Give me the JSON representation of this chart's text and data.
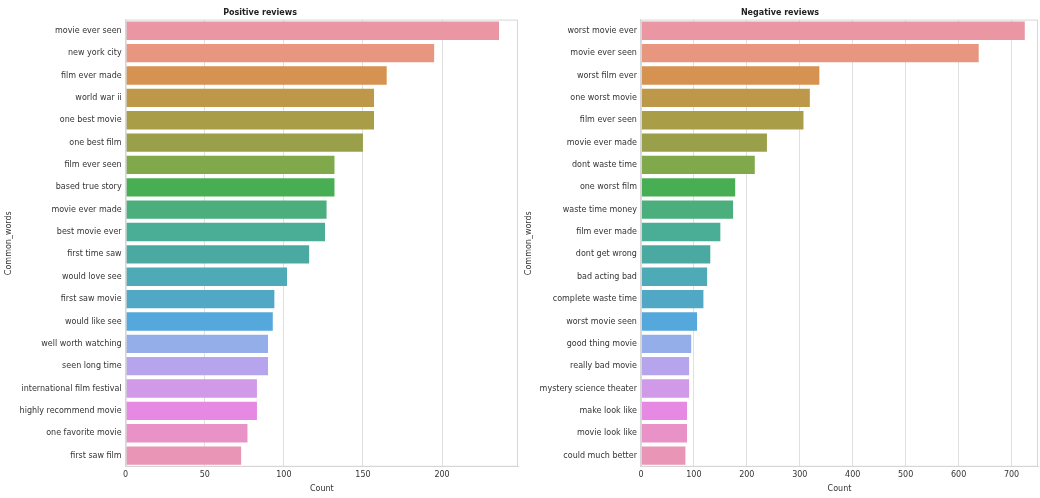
{
  "chart_data": [
    {
      "type": "bar",
      "orientation": "horizontal",
      "title": "Positive reviews",
      "xlabel": "Count",
      "ylabel": "Common_words",
      "grid": "x",
      "legend": false,
      "categories": [
        "movie ever seen",
        "new york city",
        "film ever made",
        "world war ii",
        "one best movie",
        "one best film",
        "film ever seen",
        "based true story",
        "movie ever made",
        "best movie ever",
        "first time saw",
        "would love see",
        "first saw movie",
        "would like see",
        "well worth watching",
        "seen long time",
        "international film festival",
        "highly recommend movie",
        "one favorite movie",
        "first saw film"
      ],
      "values": [
        236,
        195,
        165,
        157,
        157,
        150,
        132,
        132,
        127,
        126,
        116,
        102,
        94,
        93,
        90,
        90,
        83,
        83,
        77,
        73
      ],
      "colors": [
        "#ea96a3",
        "#e8967f",
        "#d59250",
        "#bd9848",
        "#a99d47",
        "#9aa04a",
        "#7fa94a",
        "#48ae53",
        "#4aae7d",
        "#4aad95",
        "#4aaaa2",
        "#4eaab6",
        "#50a8c4",
        "#55a8db",
        "#93aee8",
        "#b6a5ec",
        "#d19ae8",
        "#e689e3",
        "#e892c8",
        "#e995b6"
      ],
      "xlim": [
        0,
        248
      ],
      "xticks": [
        0,
        50,
        100,
        150,
        200
      ]
    },
    {
      "type": "bar",
      "orientation": "horizontal",
      "title": "Negative reviews",
      "xlabel": "Count",
      "ylabel": "Common_words",
      "grid": "x",
      "legend": false,
      "categories": [
        "worst movie ever",
        "movie ever seen",
        "worst film ever",
        "one worst movie",
        "film ever seen",
        "movie ever made",
        "dont waste time",
        "one worst film",
        "waste time money",
        "film ever made",
        "dont get wrong",
        "bad acting bad",
        "complete waste time",
        "worst movie seen",
        "good thing movie",
        "really bad movie",
        "mystery science theater",
        "make look like",
        "movie look like",
        "could much better"
      ],
      "values": [
        725,
        638,
        337,
        319,
        307,
        238,
        215,
        178,
        174,
        150,
        131,
        125,
        118,
        106,
        95,
        91,
        91,
        87,
        87,
        84
      ],
      "colors": [
        "#ea96a3",
        "#e8967f",
        "#d59250",
        "#bd9848",
        "#a99d47",
        "#9aa04a",
        "#7fa94a",
        "#48ae53",
        "#4aae7d",
        "#4aad95",
        "#4aaaa2",
        "#4eaab6",
        "#50a8c4",
        "#55a8db",
        "#93aee8",
        "#b6a5ec",
        "#d19ae8",
        "#e689e3",
        "#e892c8",
        "#e995b6"
      ],
      "xlim": [
        0,
        750
      ],
      "xticks": [
        0,
        100,
        200,
        300,
        400,
        500,
        600,
        700
      ]
    }
  ]
}
